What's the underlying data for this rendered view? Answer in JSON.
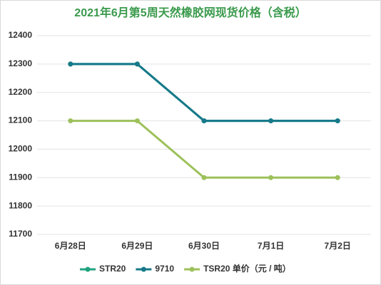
{
  "chart_data": {
    "type": "line",
    "title": "2021年6月第5周天然橡胶网现货价格（含税）",
    "categories": [
      "6月28日",
      "6月29日",
      "6月30日",
      "7月1日",
      "7月2日"
    ],
    "series": [
      {
        "name": "STR20",
        "color": "#1fa37e",
        "values": [
          12300,
          12300,
          12100,
          12100,
          12100
        ]
      },
      {
        "name": "9710",
        "color": "#17798a",
        "values": [
          12300,
          12300,
          12100,
          12100,
          12100
        ]
      },
      {
        "name": "TSR20 单价（元 / 吨）",
        "color": "#9dc15b",
        "values": [
          12100,
          12100,
          11900,
          11900,
          11900
        ]
      }
    ],
    "ylim": [
      11700,
      12400
    ],
    "yticks": [
      11700,
      11800,
      11900,
      12000,
      12100,
      12200,
      12300,
      12400
    ],
    "grid": true
  }
}
